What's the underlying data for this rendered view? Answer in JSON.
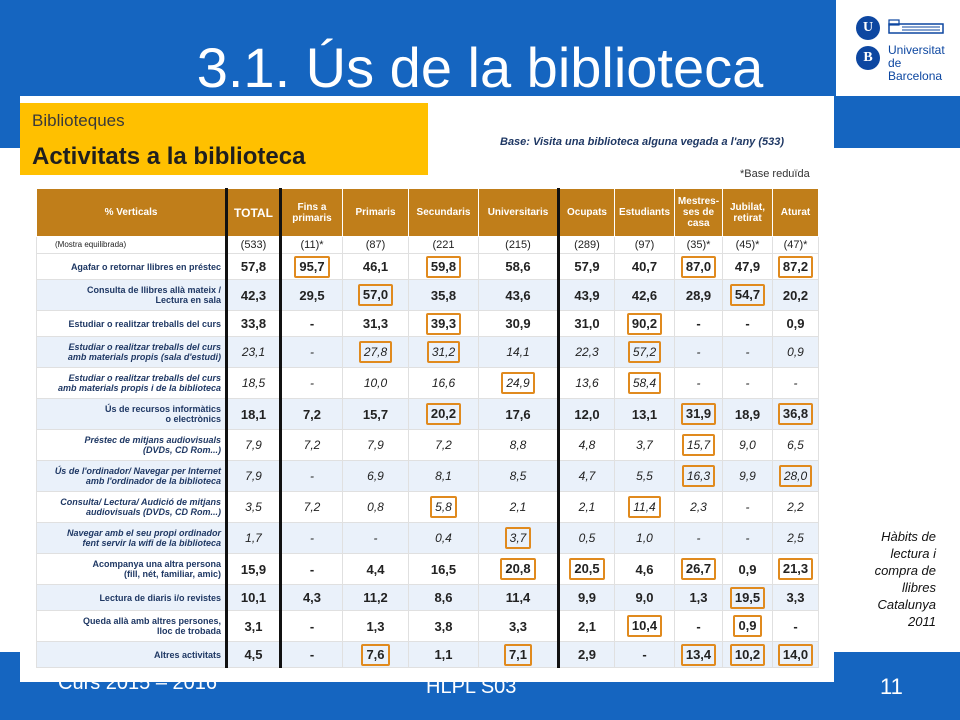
{
  "slide": {
    "title": "3.1. Ús de la biblioteca",
    "logo": {
      "u": "U",
      "b": "B",
      "text": "Universitat de Barcelona"
    },
    "side_note": [
      "Hàbits de",
      "lectura i",
      "compra de",
      "llibres",
      "Catalunya",
      "2011"
    ],
    "footer": {
      "left": "Curs 2015 – 2016",
      "center": "HLPL S03",
      "page": "11"
    }
  },
  "doc": {
    "category": "Biblioteques",
    "heading": "Activitats a la biblioteca",
    "base": "Base: Visita una biblioteca alguna vegada a l'any (533)",
    "note": "*Base reduïda"
  },
  "table": {
    "headers": [
      "% Verticals",
      "TOTAL",
      "Fins a primaris",
      "Primaris",
      "Secundaris",
      "Universitaris",
      "Ocupats",
      "Estudiants",
      "Mestres-ses de casa",
      "Jubilat, retirat",
      "Aturat"
    ],
    "base_row": {
      "label": "(Mostra equilibrada)",
      "values": [
        "(533)",
        "(11)*",
        "(87)",
        "(221",
        "(215)",
        "(289)",
        "(97)",
        "(35)*",
        "(45)*",
        "(47)*"
      ]
    },
    "rows": [
      {
        "label": [
          "Agafar o retornar llibres en préstec"
        ],
        "style": "bold",
        "values": [
          "57,8",
          "95,7",
          "46,1",
          "59,8",
          "58,6",
          "57,9",
          "40,7",
          "87,0",
          "47,9",
          "87,2"
        ],
        "highlight": [
          1,
          3,
          7,
          9
        ]
      },
      {
        "label": [
          "Consulta de llibres allà mateix /",
          "Lectura en sala"
        ],
        "style": "bold",
        "values": [
          "42,3",
          "29,5",
          "57,0",
          "35,8",
          "43,6",
          "43,9",
          "42,6",
          "28,9",
          "54,7",
          "20,2"
        ],
        "highlight": [
          2,
          8
        ]
      },
      {
        "label": [
          "Estudiar o realitzar treballs del curs"
        ],
        "style": "bold",
        "values": [
          "33,8",
          "-",
          "31,3",
          "39,3",
          "30,9",
          "31,0",
          "90,2",
          "-",
          "-",
          "0,9"
        ],
        "highlight": [
          3,
          6
        ]
      },
      {
        "label": [
          "Estudiar o realitzar treballs del curs",
          "amb materials propis (sala d'estudi)"
        ],
        "style": "ital",
        "values": [
          "23,1",
          "-",
          "27,8",
          "31,2",
          "14,1",
          "22,3",
          "57,2",
          "-",
          "-",
          "0,9"
        ],
        "highlight": [
          2,
          3,
          6
        ]
      },
      {
        "label": [
          "Estudiar o realitzar treballs del curs",
          "amb materials propis i de la biblioteca"
        ],
        "style": "ital",
        "values": [
          "18,5",
          "-",
          "10,0",
          "16,6",
          "24,9",
          "13,6",
          "58,4",
          "-",
          "-",
          "-"
        ],
        "highlight": [
          4,
          6
        ]
      },
      {
        "label": [
          "Ús de recursos informàtics",
          "o electrònics"
        ],
        "style": "bold",
        "values": [
          "18,1",
          "7,2",
          "15,7",
          "20,2",
          "17,6",
          "12,0",
          "13,1",
          "31,9",
          "18,9",
          "36,8"
        ],
        "highlight": [
          3,
          7,
          9
        ]
      },
      {
        "label": [
          "Préstec de mitjans audiovisuals",
          "(DVDs, CD Rom...)"
        ],
        "style": "ital",
        "values": [
          "7,9",
          "7,2",
          "7,9",
          "7,2",
          "8,8",
          "4,8",
          "3,7",
          "15,7",
          "9,0",
          "6,5"
        ],
        "highlight": [
          7
        ]
      },
      {
        "label": [
          "Ús de l'ordinador/ Navegar per Internet",
          "amb l'ordinador de la biblioteca"
        ],
        "style": "ital",
        "values": [
          "7,9",
          "-",
          "6,9",
          "8,1",
          "8,5",
          "4,7",
          "5,5",
          "16,3",
          "9,9",
          "28,0"
        ],
        "highlight": [
          7,
          9
        ]
      },
      {
        "label": [
          "Consulta/ Lectura/ Audició de mitjans",
          "audiovisuals (DVDs, CD Rom...)"
        ],
        "style": "ital",
        "values": [
          "3,5",
          "7,2",
          "0,8",
          "5,8",
          "2,1",
          "2,1",
          "11,4",
          "2,3",
          "-",
          "2,2"
        ],
        "highlight": [
          3,
          6
        ]
      },
      {
        "label": [
          "Navegar amb el seu propi ordinador",
          "fent servir la wifi de la biblioteca"
        ],
        "style": "ital",
        "values": [
          "1,7",
          "-",
          "-",
          "0,4",
          "3,7",
          "0,5",
          "1,0",
          "-",
          "-",
          "2,5"
        ],
        "highlight": [
          4
        ]
      },
      {
        "label": [
          "Acompanya una altra persona",
          "(fill, nét, familiar, amic)"
        ],
        "style": "bold",
        "values": [
          "15,9",
          "-",
          "4,4",
          "16,5",
          "20,8",
          "20,5",
          "4,6",
          "26,7",
          "0,9",
          "21,3"
        ],
        "highlight": [
          4,
          5,
          7,
          9
        ]
      },
      {
        "label": [
          "Lectura de diaris i/o revistes"
        ],
        "style": "bold",
        "values": [
          "10,1",
          "4,3",
          "11,2",
          "8,6",
          "11,4",
          "9,9",
          "9,0",
          "1,3",
          "19,5",
          "3,3"
        ],
        "highlight": [
          8
        ]
      },
      {
        "label": [
          "Queda allà amb altres persones,",
          "lloc de trobada"
        ],
        "style": "bold",
        "values": [
          "3,1",
          "-",
          "1,3",
          "3,8",
          "3,3",
          "2,1",
          "10,4",
          "-",
          "0,9",
          "-"
        ],
        "highlight": [
          6,
          8
        ]
      },
      {
        "label": [
          "Altres activitats"
        ],
        "style": "bold",
        "values": [
          "4,5",
          "-",
          "7,6",
          "1,1",
          "7,1",
          "2,9",
          "-",
          "13,4",
          "10,2",
          "14,0"
        ],
        "highlight": [
          2,
          4,
          7,
          8,
          9
        ]
      }
    ]
  }
}
